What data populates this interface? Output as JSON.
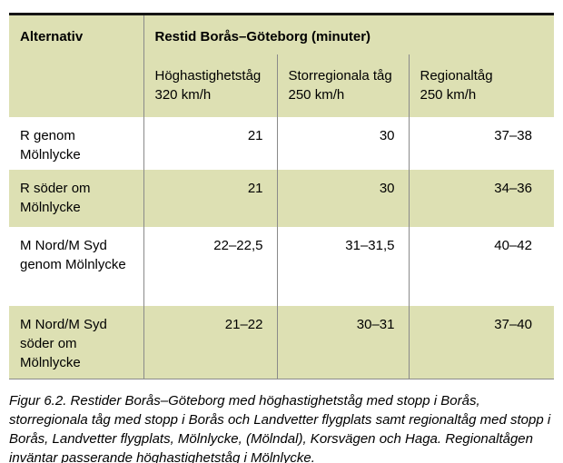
{
  "table": {
    "header": {
      "alternativ_label": "Alternativ",
      "title": "Restid Borås–Göteborg (minuter)",
      "subcols": [
        {
          "name": "Höghastighetståg",
          "speed": "320 km/h"
        },
        {
          "name": "Storregionala tåg",
          "speed": "250 km/h"
        },
        {
          "name": "Regionaltåg",
          "speed": "250 km/h"
        }
      ]
    },
    "rows": [
      {
        "label": "R genom Mölnlycke",
        "values": [
          "21",
          "30",
          "37–38"
        ]
      },
      {
        "label": "R söder om Mölnlycke",
        "values": [
          "21",
          "30",
          "34–36"
        ]
      },
      {
        "label": "M Nord/M Syd genom Mölnlycke",
        "values": [
          "22–22,5",
          "31–31,5",
          "40–42"
        ]
      },
      {
        "label": "M Nord/M Syd söder om Mölnlycke",
        "values": [
          "21–22",
          "30–31",
          "37–40"
        ]
      }
    ]
  },
  "caption": "Figur 6.2.  Restider Borås–Göteborg med höghastighetståg med stopp i Borås, storregionala tåg med stopp i Borås och Landvetter flygplats samt regionaltåg med stopp i Borås, Landvetter flygplats, Mölnlycke, (Mölndal), Korsvägen och Haga. Regionaltågen inväntar passerande höghastighetståg i Mölnlycke.",
  "colors": {
    "header_bg": "#dde0b3",
    "alt_row_bg": "#dde0b3",
    "grid_line": "#8a8a8a",
    "top_border": "#151515"
  }
}
